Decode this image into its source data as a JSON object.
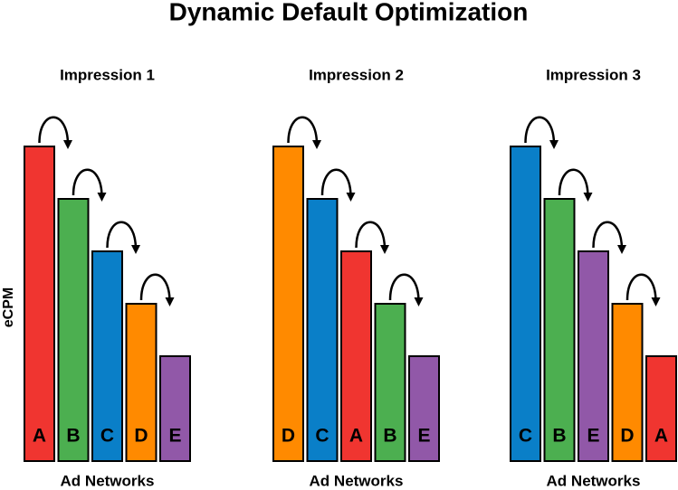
{
  "title": "Dynamic Default Optimization",
  "y_label": "eCPM",
  "chart_data": [
    {
      "type": "bar",
      "title": "Impression 1",
      "x_label": "Ad Networks",
      "categories": [
        "A",
        "B",
        "C",
        "D",
        "E"
      ],
      "values": [
        6,
        5,
        4,
        3,
        2
      ],
      "colors": [
        "#f03530",
        "#4caf50",
        "#0a7fc8",
        "#ff8a00",
        "#9158a8"
      ],
      "ylim": [
        0,
        6
      ]
    },
    {
      "type": "bar",
      "title": "Impression 2",
      "x_label": "Ad Networks",
      "categories": [
        "D",
        "C",
        "A",
        "B",
        "E"
      ],
      "values": [
        6,
        5,
        4,
        3,
        2
      ],
      "colors": [
        "#ff8a00",
        "#0a7fc8",
        "#f03530",
        "#4caf50",
        "#9158a8"
      ],
      "ylim": [
        0,
        6
      ]
    },
    {
      "type": "bar",
      "title": "Impression 3",
      "x_label": "Ad Networks",
      "categories": [
        "C",
        "B",
        "E",
        "D",
        "A"
      ],
      "values": [
        6,
        5,
        4,
        3,
        2
      ],
      "colors": [
        "#0a7fc8",
        "#4caf50",
        "#9158a8",
        "#ff8a00",
        "#f03530"
      ],
      "ylim": [
        0,
        6
      ]
    }
  ]
}
